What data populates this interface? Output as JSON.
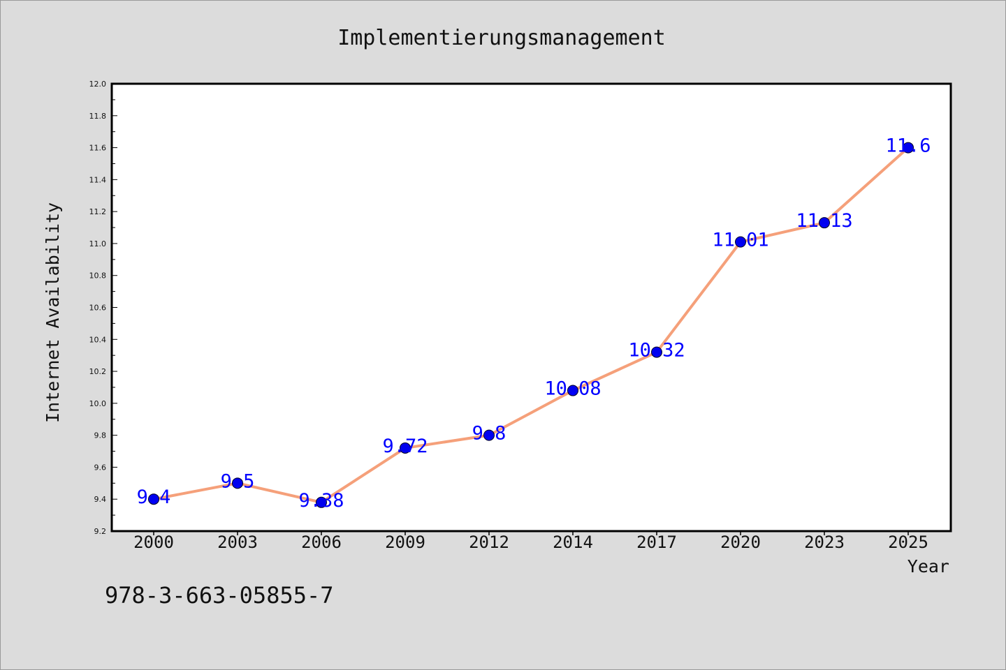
{
  "chart_data": {
    "type": "line",
    "title": "Implementierungsmanagement",
    "xlabel": "Year",
    "ylabel": "Internet Availability",
    "categories": [
      "2000",
      "2003",
      "2006",
      "2009",
      "2012",
      "2014",
      "2017",
      "2020",
      "2023",
      "2025"
    ],
    "series": [
      {
        "values": [
          9.4,
          9.5,
          9.38,
          9.72,
          9.8,
          10.08,
          10.32,
          11.01,
          11.13,
          11.6
        ],
        "line_color": "#f5a07a",
        "marker_color": "#0000ee"
      }
    ],
    "data_labels": [
      "9.4",
      "9.5",
      "9.38",
      "9.72",
      "9.8",
      "10.08",
      "10.32",
      "11.01",
      "11.13",
      "11.6"
    ],
    "ylim": [
      9.2,
      12.0
    ],
    "yticks": [
      "9.2",
      "9.4",
      "9.6",
      "9.8",
      "10.0",
      "10.2",
      "10.4",
      "10.6",
      "10.8",
      "11.0",
      "11.2",
      "11.4",
      "11.6",
      "11.8",
      "12.0"
    ],
    "grid": false,
    "legend": "none",
    "label_color": "#0000ff"
  },
  "footer": {
    "isbn": "978-3-663-05855-7"
  }
}
